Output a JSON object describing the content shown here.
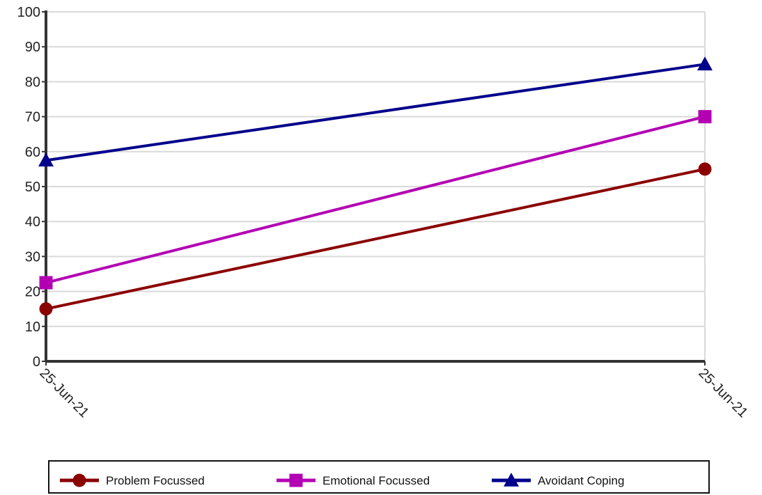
{
  "chart_data": {
    "type": "line",
    "title": "",
    "xlabel": "",
    "ylabel": "",
    "x": [
      "25-Jun-21",
      "25-Jun-21"
    ],
    "ylim": [
      0,
      100
    ],
    "yticks": [
      0,
      10,
      20,
      30,
      40,
      50,
      60,
      70,
      80,
      90,
      100
    ],
    "grid": true,
    "legend_position": "bottom",
    "series": [
      {
        "name": "Problem Focussed",
        "values": [
          15,
          55
        ],
        "color": "#8b0000",
        "marker": "circle"
      },
      {
        "name": "Emotional Focussed",
        "values": [
          22.5,
          70
        ],
        "color": "#b300b3",
        "marker": "square"
      },
      {
        "name": "Avoidant Coping",
        "values": [
          57.5,
          85
        ],
        "color": "#00008b",
        "marker": "triangle"
      }
    ]
  }
}
